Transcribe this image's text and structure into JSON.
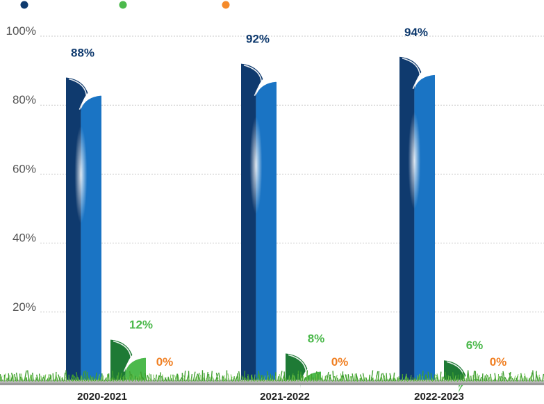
{
  "chart_data": {
    "type": "bar",
    "categories": [
      "2020-2021",
      "2021-2022",
      "2022-2023"
    ],
    "series": [
      {
        "values": [
          88,
          92,
          94
        ],
        "labels": [
          "88%",
          "92%",
          "94%"
        ],
        "color": "#0f3a6e",
        "light": "#1a74c4"
      },
      {
        "values": [
          12,
          8,
          6
        ],
        "labels": [
          "12%",
          "8%",
          "6%"
        ],
        "color": "#1e7a35",
        "light": "#4cb94c"
      },
      {
        "values": [
          0,
          0,
          0
        ],
        "labels": [
          "0%",
          "0%",
          "0%"
        ],
        "color": "#f07f22",
        "light": "#f59a4a"
      }
    ],
    "legend_colors": [
      "#0f3a6e",
      "#4cb94c",
      "#f58a2a"
    ],
    "legend_placement": "top-left",
    "ylim": [
      0,
      100
    ],
    "yticks": [
      {
        "value": 20,
        "label": "20%"
      },
      {
        "value": 40,
        "label": "40%"
      },
      {
        "value": 60,
        "label": "60%"
      },
      {
        "value": 80,
        "label": "80%"
      },
      {
        "value": 100,
        "label": "100%"
      }
    ],
    "grid": true,
    "title": "",
    "xlabel": "",
    "ylabel": ""
  }
}
